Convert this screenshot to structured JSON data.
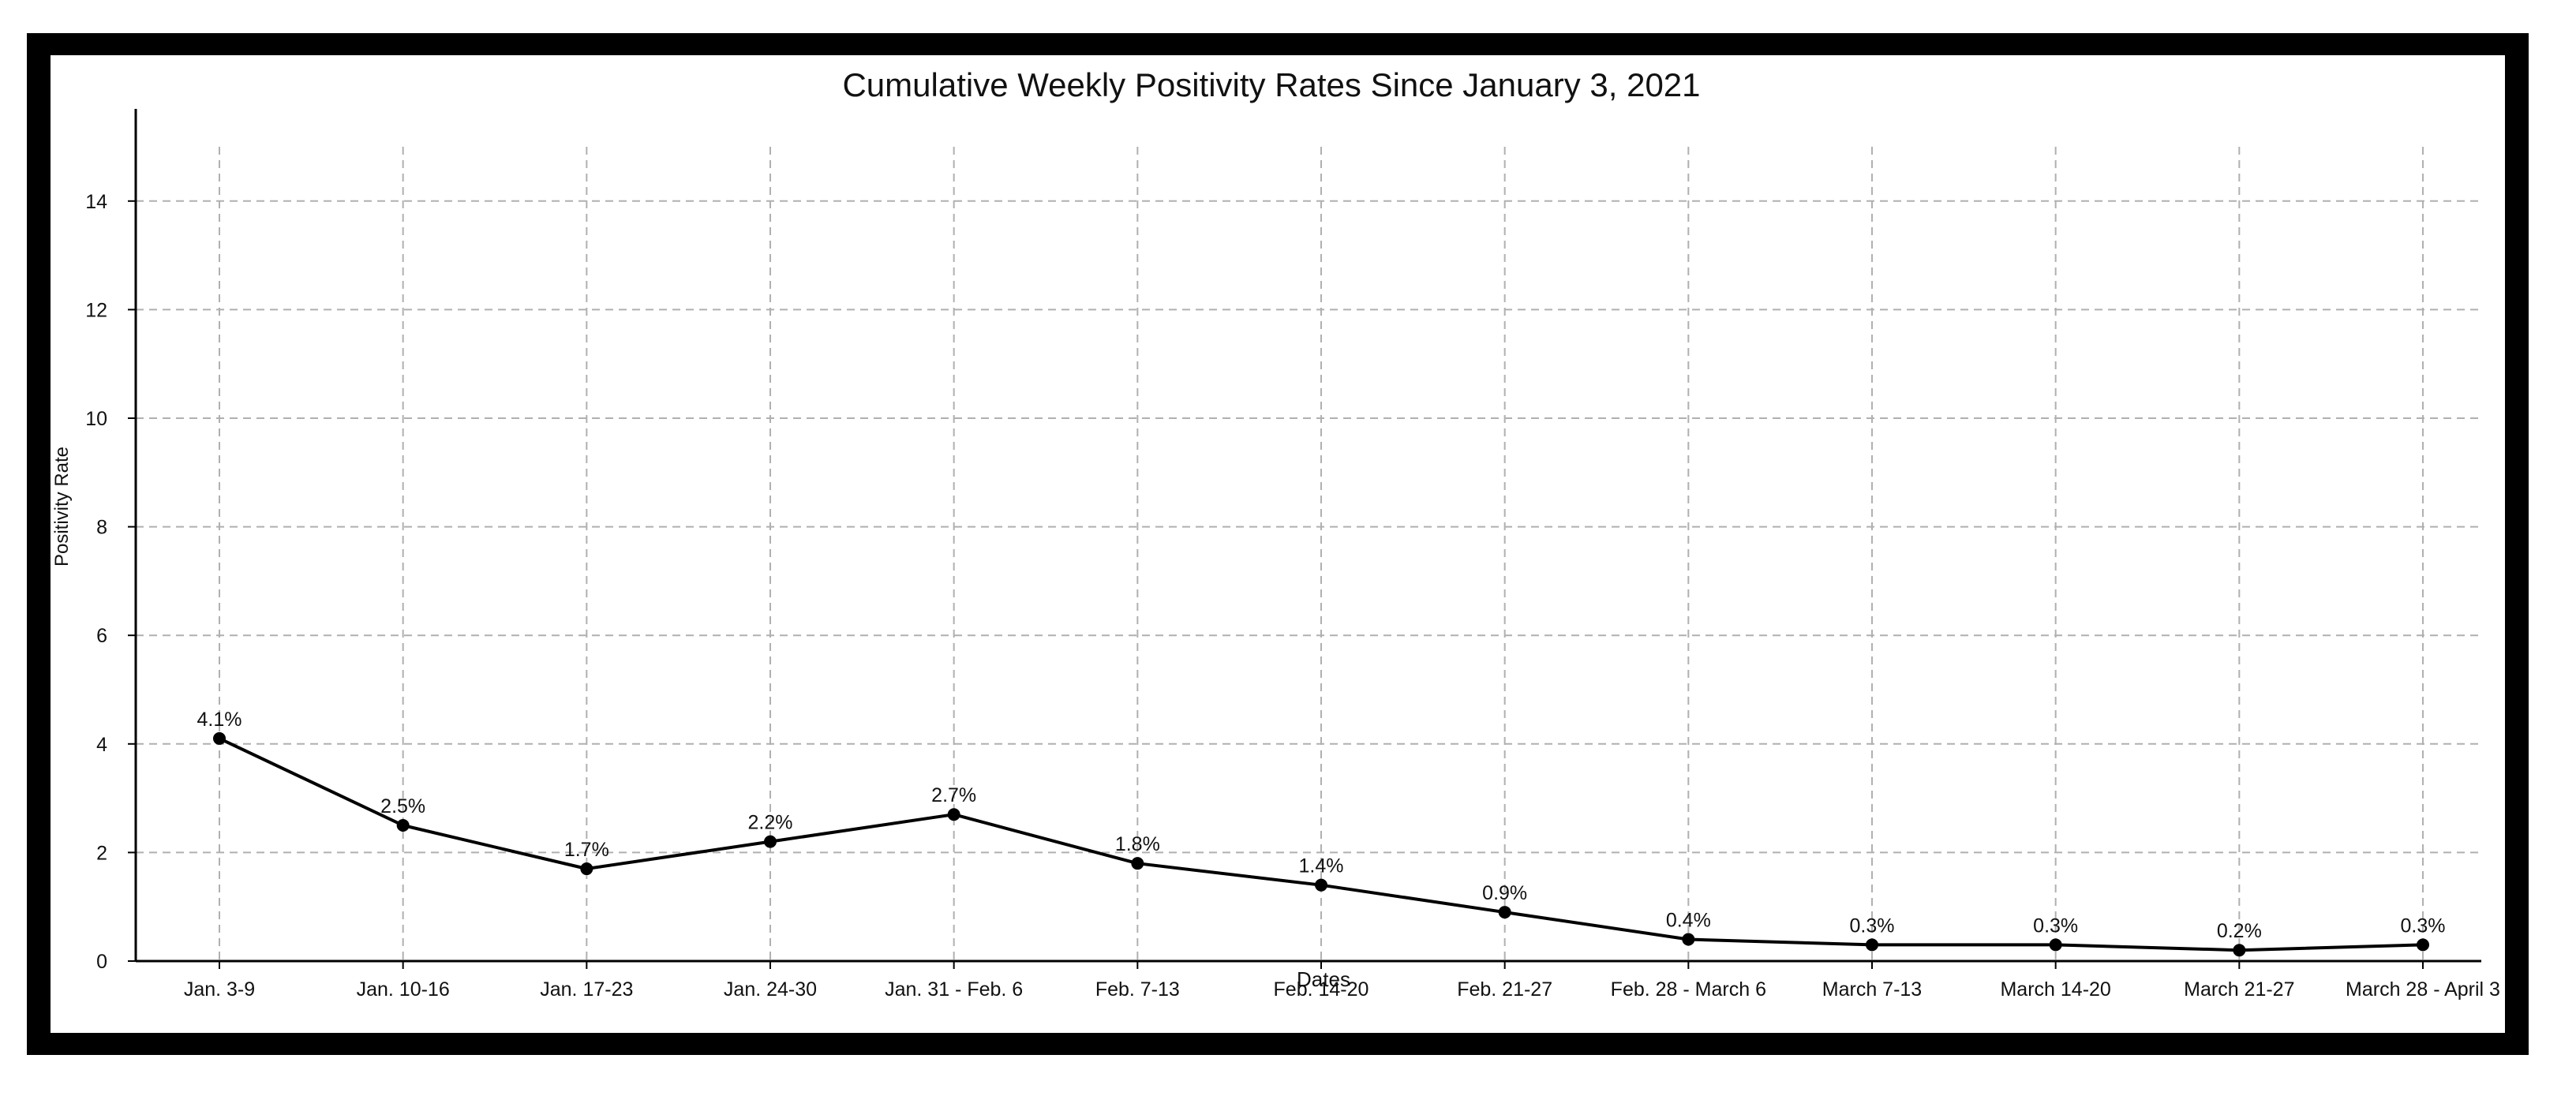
{
  "chart_data": {
    "type": "line",
    "title": "Cumulative Weekly Positivity Rates Since January 3, 2021",
    "xlabel": "Dates",
    "ylabel": "Positivity Rate",
    "categories": [
      "Jan. 3-9",
      "Jan. 10-16",
      "Jan. 17-23",
      "Jan. 24-30",
      "Jan. 31 - Feb. 6",
      "Feb. 7-13",
      "Feb. 14-20",
      "Feb. 21-27",
      "Feb. 28 - March 6",
      "March 7-13",
      "March 14-20",
      "March 21-27",
      "March 28 - April 3"
    ],
    "series": [
      {
        "values": [
          4.1,
          2.5,
          1.7,
          2.2,
          2.7,
          1.8,
          1.4,
          0.9,
          0.4,
          0.3,
          0.3,
          0.2,
          0.3
        ],
        "data_labels": [
          "4.1%",
          "2.5%",
          "1.7%",
          "2.2%",
          "2.7%",
          "1.8%",
          "1.4%",
          "0.9%",
          "0.4%",
          "0.3%",
          "0.3%",
          "0.2%",
          "0.3%"
        ]
      }
    ],
    "ylim": [
      0,
      15
    ],
    "yticks": [
      0,
      2,
      4,
      6,
      8,
      10,
      12,
      14
    ],
    "grid": true,
    "line_color": "#000000",
    "grid_color": "#b0b0b0"
  }
}
